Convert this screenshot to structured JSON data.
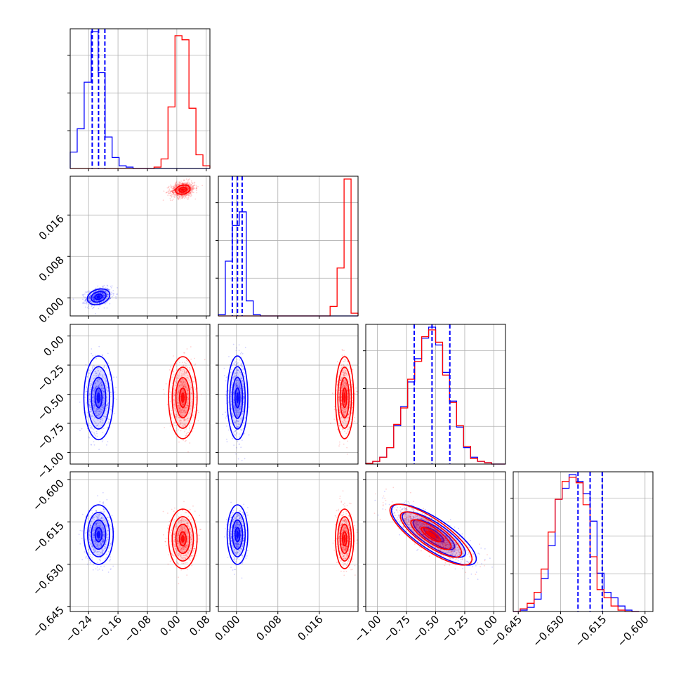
{
  "chart_data": {
    "type": "corner",
    "grid": true,
    "series": [
      {
        "color": "#0000ff"
      },
      {
        "color": "#ff0000"
      }
    ],
    "quantile_line_color": "#0000ff",
    "parameters": [
      {
        "range": [
          -0.29,
          0.09
        ],
        "ticks": [
          "−0.24",
          "−0.16",
          "−0.08",
          "0.00",
          "0.08"
        ],
        "tick_values": [
          -0.24,
          -0.16,
          -0.08,
          0.0,
          0.08
        ]
      },
      {
        "range": [
          -0.0035,
          0.0235
        ],
        "ticks": [
          "0.000",
          "0.008",
          "0.016"
        ],
        "tick_values": [
          0.0,
          0.008,
          0.016
        ]
      },
      {
        "range": [
          -1.1,
          0.1
        ],
        "ticks": [
          "−1.00",
          "−0.75",
          "−0.50",
          "−0.25",
          "0.00"
        ],
        "tick_values": [
          -1.0,
          -0.75,
          -0.5,
          -0.25,
          0.0
        ]
      },
      {
        "range": [
          -0.6468,
          -0.5972
        ],
        "ticks": [
          "−0.645",
          "−0.630",
          "−0.615",
          "−0.600"
        ],
        "tick_values": [
          -0.645,
          -0.63,
          -0.615,
          -0.6
        ]
      }
    ],
    "quantiles": [
      [
        -0.2301,
        -0.2129,
        -0.1957
      ],
      [
        -0.0008,
        0.0002,
        0.0011
      ],
      [
        -0.684,
        -0.531,
        -0.378
      ],
      [
        -0.6238,
        -0.6195,
        -0.6152
      ]
    ],
    "histograms": [
      {
        "edges": [
          -0.29,
          -0.271,
          -0.252,
          -0.233,
          -0.214,
          -0.195,
          -0.176,
          -0.157,
          -0.138,
          -0.119,
          -0.1,
          -0.081,
          -0.062,
          -0.043,
          -0.024,
          -0.005,
          0.014,
          0.033,
          0.052,
          0.071,
          0.09
        ],
        "counts": [
          [
            0.12,
            0.29,
            0.63,
            1.0,
            0.7,
            0.23,
            0.08,
            0.02,
            0.01,
            0,
            0,
            0,
            0,
            0,
            0,
            0,
            0,
            0,
            0,
            0
          ],
          [
            0,
            0,
            0,
            0,
            0,
            0,
            0,
            0,
            0,
            0,
            0,
            0,
            0.01,
            0.07,
            0.45,
            0.97,
            0.94,
            0.44,
            0.1,
            0.02
          ]
        ]
      },
      {
        "edges": [
          -0.0035,
          -0.00215,
          -0.0008,
          0.00055,
          0.0019,
          0.00325,
          0.0046,
          0.00595,
          0.0073,
          0.00865,
          0.01,
          0.01135,
          0.0127,
          0.01405,
          0.0154,
          0.01675,
          0.0181,
          0.01945,
          0.0208,
          0.02215,
          0.0235
        ],
        "counts": [
          [
            0.01,
            0.4,
            0.66,
            0.76,
            0.11,
            0.01,
            0,
            0,
            0,
            0,
            0,
            0,
            0,
            0,
            0,
            0,
            0,
            0,
            0,
            0
          ],
          [
            0,
            0,
            0,
            0,
            0,
            0,
            0,
            0,
            0,
            0,
            0,
            0,
            0,
            0,
            0,
            0,
            0.07,
            0.35,
            1.0,
            0.02
          ]
        ]
      },
      {
        "edges": [
          -1.1,
          -1.04,
          -0.98,
          -0.92,
          -0.86,
          -0.8,
          -0.74,
          -0.68,
          -0.62,
          -0.56,
          -0.5,
          -0.44,
          -0.38,
          -0.32,
          -0.26,
          -0.2,
          -0.14,
          -0.08,
          -0.02,
          0.04,
          0.1
        ],
        "counts": [
          [
            0.005,
            0.02,
            0.05,
            0.12,
            0.28,
            0.42,
            0.6,
            0.77,
            0.92,
            1.0,
            0.87,
            0.67,
            0.46,
            0.27,
            0.12,
            0.05,
            0.02,
            0.01,
            0,
            0
          ],
          [
            0.005,
            0.02,
            0.05,
            0.12,
            0.29,
            0.41,
            0.62,
            0.75,
            0.93,
            0.98,
            0.89,
            0.65,
            0.45,
            0.28,
            0.13,
            0.04,
            0.02,
            0.01,
            0,
            0
          ]
        ]
      },
      {
        "edges": [
          -0.6468,
          -0.64432,
          -0.64184,
          -0.63936,
          -0.63688,
          -0.6344,
          -0.63192,
          -0.62944,
          -0.62696,
          -0.62448,
          -0.622,
          -0.61952,
          -0.61704,
          -0.61456,
          -0.61208,
          -0.6096,
          -0.60712,
          -0.60464,
          -0.60216,
          -0.59968
        ],
        "counts": [
          [
            0,
            0.01,
            0.03,
            0.09,
            0.24,
            0.48,
            0.82,
            0.9,
            1.0,
            0.95,
            0.86,
            0.66,
            0.28,
            0.14,
            0.1,
            0.04,
            0.01,
            0
          ],
          [
            0,
            0.02,
            0.06,
            0.14,
            0.31,
            0.58,
            0.82,
            0.95,
            0.98,
            0.94,
            0.78,
            0.4,
            0.16,
            0.1,
            0.04,
            0.01,
            0,
            0
          ]
        ]
      }
    ],
    "pairs": [
      {
        "x": 0,
        "y": 1,
        "clusters": [
          {
            "series": 0,
            "mean": [
              -0.2129,
              0.0002
            ],
            "sd": [
              0.017,
              0.00085
            ],
            "rho": 0.25,
            "points": 750,
            "levels": [
              0.6,
              1.2,
              1.8
            ],
            "max_contours": 3,
            "fill": true
          },
          {
            "series": 1,
            "mean": [
              0.0163,
              0.0209
            ],
            "sd": [
              0.0165,
              0.00075
            ],
            "rho": 0.2,
            "points": 750,
            "levels": [
              0.6,
              1.2
            ],
            "max_contours": 2,
            "fill": true
          }
        ]
      },
      {
        "x": 0,
        "y": 2,
        "clusters": [
          {
            "series": 0,
            "mean": [
              -0.2129,
              -0.531
            ],
            "sd": [
              0.017,
              0.153
            ],
            "rho": 0.0,
            "points": 650,
            "levels": [
              0.55,
              1.15,
              1.75,
              2.35
            ],
            "max_contours": 4,
            "fill": true
          },
          {
            "series": 1,
            "mean": [
              0.0163,
              -0.53
            ],
            "sd": [
              0.0165,
              0.15
            ],
            "rho": 0.0,
            "points": 650,
            "levels": [
              0.55,
              1.15,
              1.75,
              2.35
            ],
            "max_contours": 4,
            "fill": true
          }
        ]
      },
      {
        "x": 1,
        "y": 2,
        "clusters": [
          {
            "series": 0,
            "mean": [
              0.0002,
              -0.531
            ],
            "sd": [
              0.00085,
              0.153
            ],
            "rho": 0.0,
            "points": 650,
            "levels": [
              0.55,
              1.15,
              1.75,
              2.35
            ],
            "max_contours": 4,
            "fill": true
          },
          {
            "series": 1,
            "mean": [
              0.0209,
              -0.53
            ],
            "sd": [
              0.00075,
              0.15
            ],
            "rho": 0.0,
            "points": 650,
            "levels": [
              0.55,
              1.15,
              1.75,
              2.35
            ],
            "max_contours": 4,
            "fill": true
          }
        ]
      },
      {
        "x": 0,
        "y": 3,
        "clusters": [
          {
            "series": 0,
            "mean": [
              -0.2129,
              -0.6195
            ],
            "sd": [
              0.017,
              0.0045
            ],
            "rho": 0.0,
            "points": 650,
            "levels": [
              0.55,
              1.15,
              1.75,
              2.35
            ],
            "max_contours": 4,
            "fill": true
          },
          {
            "series": 1,
            "mean": [
              0.0163,
              -0.621
            ],
            "sd": [
              0.0165,
              0.0045
            ],
            "rho": 0.0,
            "points": 650,
            "levels": [
              0.55,
              1.15,
              1.75,
              2.35
            ],
            "max_contours": 4,
            "fill": true
          }
        ]
      },
      {
        "x": 1,
        "y": 3,
        "clusters": [
          {
            "series": 0,
            "mean": [
              0.0002,
              -0.6195
            ],
            "sd": [
              0.00085,
              0.0045
            ],
            "rho": 0.0,
            "points": 650,
            "levels": [
              0.55,
              1.15,
              1.75,
              2.35
            ],
            "max_contours": 4,
            "fill": true
          },
          {
            "series": 1,
            "mean": [
              0.0209,
              -0.621
            ],
            "sd": [
              0.00075,
              0.0045
            ],
            "rho": 0.0,
            "points": 650,
            "levels": [
              0.55,
              1.15,
              1.75,
              2.35
            ],
            "max_contours": 4,
            "fill": true
          }
        ]
      },
      {
        "x": 2,
        "y": 3,
        "clusters": [
          {
            "series": 0,
            "mean": [
              -0.515,
              -0.6195
            ],
            "sd": [
              0.155,
              0.0046
            ],
            "rho": -0.8,
            "points": 900,
            "levels": [
              0.55,
              1.15,
              1.75,
              2.35
            ],
            "max_contours": 4,
            "fill": true
          },
          {
            "series": 1,
            "mean": [
              -0.54,
              -0.6195
            ],
            "sd": [
              0.15,
              0.0046
            ],
            "rho": -0.8,
            "points": 900,
            "levels": [
              0.55,
              1.15,
              1.75,
              2.35
            ],
            "max_contours": 4,
            "fill": true
          }
        ]
      }
    ]
  }
}
